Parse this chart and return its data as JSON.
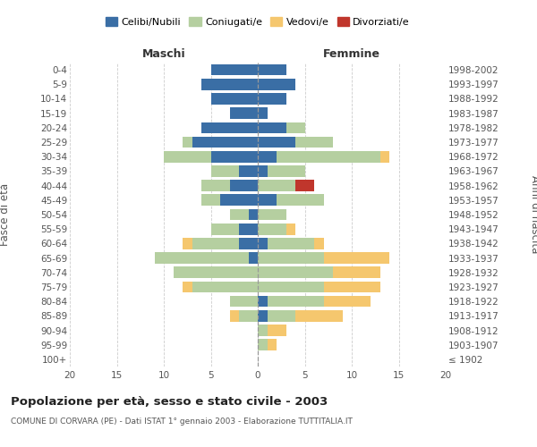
{
  "age_groups": [
    "100+",
    "95-99",
    "90-94",
    "85-89",
    "80-84",
    "75-79",
    "70-74",
    "65-69",
    "60-64",
    "55-59",
    "50-54",
    "45-49",
    "40-44",
    "35-39",
    "30-34",
    "25-29",
    "20-24",
    "15-19",
    "10-14",
    "5-9",
    "0-4"
  ],
  "birth_years": [
    "≤ 1902",
    "1903-1907",
    "1908-1912",
    "1913-1917",
    "1918-1922",
    "1923-1927",
    "1928-1932",
    "1933-1937",
    "1938-1942",
    "1943-1947",
    "1948-1952",
    "1953-1957",
    "1958-1962",
    "1963-1967",
    "1968-1972",
    "1973-1977",
    "1978-1982",
    "1983-1987",
    "1988-1992",
    "1993-1997",
    "1998-2002"
  ],
  "male": {
    "celibi": [
      0,
      0,
      0,
      0,
      0,
      0,
      0,
      1,
      2,
      2,
      1,
      4,
      3,
      2,
      5,
      7,
      6,
      3,
      5,
      6,
      5
    ],
    "coniugati": [
      0,
      0,
      0,
      2,
      3,
      7,
      9,
      10,
      5,
      3,
      2,
      2,
      3,
      3,
      5,
      1,
      0,
      0,
      0,
      0,
      0
    ],
    "vedovi": [
      0,
      0,
      0,
      1,
      0,
      1,
      0,
      0,
      1,
      0,
      0,
      0,
      0,
      0,
      0,
      0,
      0,
      0,
      0,
      0,
      0
    ],
    "divorziati": [
      0,
      0,
      0,
      0,
      0,
      0,
      0,
      0,
      0,
      0,
      0,
      0,
      0,
      0,
      0,
      0,
      0,
      0,
      0,
      0,
      0
    ]
  },
  "female": {
    "nubili": [
      0,
      0,
      0,
      1,
      1,
      0,
      0,
      0,
      1,
      0,
      0,
      2,
      0,
      1,
      2,
      4,
      3,
      1,
      3,
      4,
      3
    ],
    "coniugate": [
      0,
      1,
      1,
      3,
      6,
      7,
      8,
      7,
      5,
      3,
      3,
      5,
      4,
      4,
      11,
      4,
      2,
      0,
      0,
      0,
      0
    ],
    "vedove": [
      0,
      1,
      2,
      5,
      5,
      6,
      5,
      7,
      1,
      1,
      0,
      0,
      0,
      0,
      1,
      0,
      0,
      0,
      0,
      0,
      0
    ],
    "divorziate": [
      0,
      0,
      0,
      0,
      0,
      0,
      0,
      0,
      0,
      0,
      0,
      0,
      2,
      0,
      0,
      0,
      0,
      0,
      0,
      0,
      0
    ]
  },
  "color_celibi": "#3a6ea5",
  "color_coniugati": "#b5cfa0",
  "color_vedovi": "#f5c76e",
  "color_divorziati": "#c0362c",
  "title": "Popolazione per età, sesso e stato civile - 2003",
  "subtitle": "COMUNE DI CORVARA (PE) - Dati ISTAT 1° gennaio 2003 - Elaborazione TUTTITALIA.IT",
  "xlabel_left": "Maschi",
  "xlabel_right": "Femmine",
  "ylabel_left": "Fasce di età",
  "ylabel_right": "Anni di nascita",
  "xlim": 20,
  "background_color": "#ffffff",
  "grid_color": "#cccccc"
}
